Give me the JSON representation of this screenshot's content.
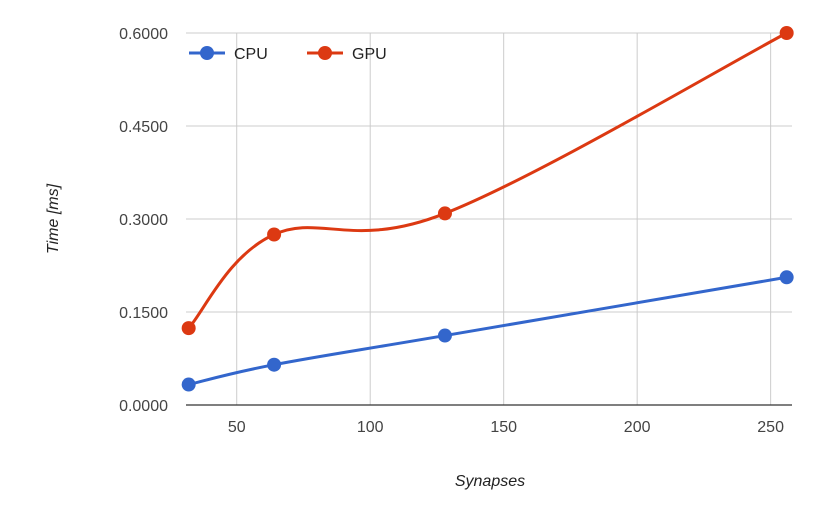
{
  "chart_data": {
    "type": "line",
    "xlabel": "Synapses",
    "ylabel": "Time [ms]",
    "xlim": [
      31,
      258
    ],
    "ylim": [
      0,
      0.6
    ],
    "x_ticks": [
      50,
      100,
      150,
      200,
      250
    ],
    "y_ticks": [
      0,
      0.15,
      0.3,
      0.45,
      0.6
    ],
    "y_tick_labels": [
      "0.0000",
      "0.1500",
      "0.3000",
      "0.4500",
      "0.6000"
    ],
    "grid": true,
    "legend_position": "top-left",
    "x": [
      32,
      64,
      128,
      256
    ],
    "series": [
      {
        "name": "CPU",
        "color": "#3366cc",
        "values": [
          0.033,
          0.065,
          0.112,
          0.206
        ]
      },
      {
        "name": "GPU",
        "color": "#dc3912",
        "values": [
          0.124,
          0.275,
          0.309,
          0.6
        ]
      }
    ]
  }
}
